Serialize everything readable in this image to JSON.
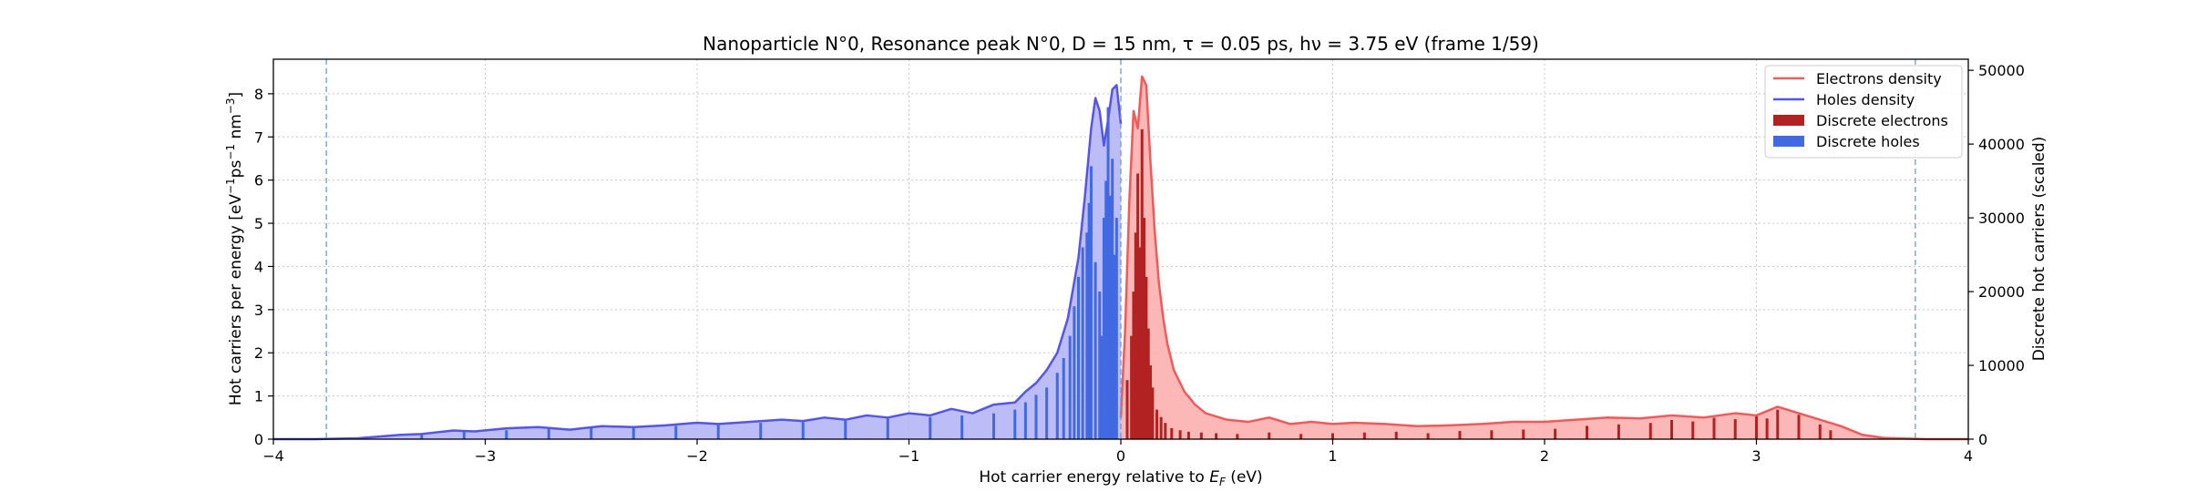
{
  "chart_data": {
    "type": "area",
    "title": "Nanoparticle N°0, Resonance peak N°0, D = 15 nm, τ = 0.05 ps, hν = 3.75 eV   (frame 1/59)",
    "xlabel": "Hot carrier energy relative to E_F (eV)",
    "ylabel": "Hot carriers per energy [eV⁻¹ps⁻¹nm⁻³]",
    "y2label": "Discrete hot carriers (scaled)",
    "xlim": [
      -4,
      4
    ],
    "ylim": [
      0,
      8.8
    ],
    "y2lim": [
      0,
      51500
    ],
    "xticks": [
      -4,
      -3,
      -2,
      -1,
      0,
      1,
      2,
      3,
      4
    ],
    "xtick_labels": [
      "−4",
      "−3",
      "−2",
      "−1",
      "0",
      "1",
      "2",
      "3",
      "4"
    ],
    "yticks": [
      0,
      1,
      2,
      3,
      4,
      5,
      6,
      7,
      8
    ],
    "y2ticks": [
      0,
      10000,
      20000,
      30000,
      40000,
      50000
    ],
    "grid": true,
    "legend_position": "top-right",
    "vlines": [
      -3.75,
      0,
      3.75
    ],
    "colors": {
      "electrons_line": "#f05a5a",
      "electrons_fill": "#fbaaaa",
      "holes_line": "#5555e6",
      "holes_fill": "#b0b0f5",
      "discrete_electrons": "#b22222",
      "discrete_holes": "#4169e1",
      "vline": "#6a9fd0"
    },
    "series": [
      {
        "name": "Holes density",
        "kind": "line",
        "x": [
          -4.0,
          -3.8,
          -3.6,
          -3.4,
          -3.3,
          -3.15,
          -3.05,
          -2.9,
          -2.75,
          -2.6,
          -2.45,
          -2.3,
          -2.15,
          -2.0,
          -1.9,
          -1.75,
          -1.6,
          -1.5,
          -1.4,
          -1.3,
          -1.2,
          -1.1,
          -1.0,
          -0.9,
          -0.8,
          -0.7,
          -0.6,
          -0.5,
          -0.45,
          -0.4,
          -0.35,
          -0.3,
          -0.25,
          -0.2,
          -0.17,
          -0.14,
          -0.12,
          -0.1,
          -0.08,
          -0.06,
          -0.04,
          -0.02,
          0.0
        ],
        "y": [
          0.0,
          0.0,
          0.02,
          0.1,
          0.12,
          0.2,
          0.18,
          0.25,
          0.28,
          0.22,
          0.3,
          0.28,
          0.32,
          0.38,
          0.35,
          0.4,
          0.45,
          0.42,
          0.5,
          0.45,
          0.55,
          0.5,
          0.6,
          0.55,
          0.7,
          0.6,
          0.8,
          0.85,
          1.1,
          1.3,
          1.6,
          2.0,
          2.8,
          4.2,
          5.6,
          7.2,
          7.9,
          7.6,
          6.8,
          7.4,
          8.1,
          8.2,
          7.3
        ]
      },
      {
        "name": "Electrons density",
        "kind": "line",
        "x": [
          0.0,
          0.02,
          0.04,
          0.06,
          0.08,
          0.1,
          0.12,
          0.14,
          0.16,
          0.18,
          0.2,
          0.22,
          0.25,
          0.3,
          0.35,
          0.4,
          0.5,
          0.6,
          0.7,
          0.8,
          0.9,
          1.0,
          1.1,
          1.25,
          1.4,
          1.55,
          1.7,
          1.85,
          2.0,
          2.15,
          2.3,
          2.45,
          2.6,
          2.75,
          2.9,
          3.0,
          3.1,
          3.2,
          3.3,
          3.4,
          3.5,
          3.6,
          3.8,
          4.0
        ],
        "y": [
          0.5,
          2.5,
          5.5,
          7.6,
          7.2,
          8.4,
          8.2,
          6.4,
          4.8,
          3.6,
          2.8,
          2.2,
          1.6,
          1.1,
          0.8,
          0.6,
          0.45,
          0.4,
          0.5,
          0.35,
          0.4,
          0.35,
          0.38,
          0.35,
          0.3,
          0.32,
          0.35,
          0.4,
          0.4,
          0.45,
          0.5,
          0.48,
          0.55,
          0.5,
          0.6,
          0.55,
          0.75,
          0.6,
          0.45,
          0.3,
          0.1,
          0.03,
          0.0,
          0.0
        ]
      },
      {
        "name": "Discrete electrons",
        "kind": "bar",
        "x": [
          0.03,
          0.05,
          0.06,
          0.07,
          0.08,
          0.09,
          0.1,
          0.11,
          0.12,
          0.13,
          0.14,
          0.15,
          0.17,
          0.19,
          0.21,
          0.24,
          0.28,
          0.32,
          0.38,
          0.45,
          0.55,
          0.7,
          0.85,
          1.0,
          1.15,
          1.3,
          1.45,
          1.6,
          1.75,
          1.9,
          2.05,
          2.2,
          2.35,
          2.5,
          2.6,
          2.7,
          2.8,
          2.9,
          3.0,
          3.05,
          3.1,
          3.2,
          3.3,
          3.35
        ],
        "y": [
          8000,
          14000,
          20000,
          28000,
          36000,
          26000,
          42000,
          30000,
          22000,
          15000,
          10000,
          7000,
          4000,
          3000,
          2200,
          1500,
          1200,
          1000,
          900,
          800,
          700,
          900,
          700,
          800,
          900,
          1000,
          800,
          1100,
          1200,
          1300,
          1400,
          1800,
          2000,
          2200,
          2600,
          2400,
          2900,
          2700,
          3200,
          2800,
          4000,
          3300,
          2000,
          1200
        ]
      },
      {
        "name": "Discrete holes",
        "kind": "bar",
        "x": [
          -3.3,
          -3.1,
          -2.9,
          -2.7,
          -2.5,
          -2.3,
          -2.1,
          -1.9,
          -1.7,
          -1.5,
          -1.3,
          -1.1,
          -0.9,
          -0.75,
          -0.6,
          -0.5,
          -0.45,
          -0.4,
          -0.35,
          -0.3,
          -0.27,
          -0.24,
          -0.22,
          -0.2,
          -0.18,
          -0.16,
          -0.15,
          -0.14,
          -0.12,
          -0.1,
          -0.09,
          -0.08,
          -0.07,
          -0.06,
          -0.05,
          -0.04,
          -0.03,
          -0.02
        ],
        "y": [
          800,
          1000,
          1200,
          1400,
          1500,
          1600,
          1800,
          2000,
          2200,
          2300,
          2500,
          2800,
          3000,
          3200,
          3500,
          4000,
          5000,
          6000,
          7000,
          9000,
          11000,
          14000,
          18000,
          22000,
          26000,
          28000,
          32000,
          37000,
          24000,
          20000,
          14000,
          30000,
          35000,
          45000,
          33000,
          38000,
          25000,
          30000
        ]
      }
    ],
    "legend": [
      "Electrons density",
      "Holes density",
      "Discrete electrons",
      "Discrete holes"
    ]
  }
}
